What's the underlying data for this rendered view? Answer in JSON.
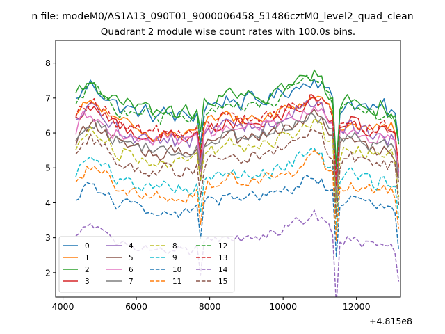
{
  "figure": {
    "suptitle": "n file: modeM0/AS1A13_090T01_9000006458_51486cztM0_level2_quad_clean"
  },
  "chart_data": {
    "type": "line",
    "title": "Quadrant 2 module wise count rates with 100.0s bins.",
    "xlabel": "",
    "ylabel": "",
    "x_offset_label": "+4.815e8",
    "xlim": [
      3800,
      13200
    ],
    "ylim": [
      1.3,
      8.65
    ],
    "x_ticks": [
      4000,
      6000,
      8000,
      10000,
      12000
    ],
    "x_tick_labels": [
      "4000",
      "6000",
      "8000",
      "10000",
      "12000"
    ],
    "y_ticks": [
      2,
      3,
      4,
      5,
      6,
      7,
      8
    ],
    "y_tick_labels": [
      "2",
      "3",
      "4",
      "5",
      "6",
      "7",
      "8"
    ],
    "grid": false,
    "legend": {
      "placement": "lower-left",
      "columns": 4
    },
    "x_start": 4350,
    "x_step": 100,
    "series": [
      {
        "name": "0",
        "color": "#1f77b4",
        "dash": "solid",
        "base": 6.9,
        "amp": 0.32
      },
      {
        "name": "1",
        "color": "#ff7f0e",
        "dash": "solid",
        "base": 6.4,
        "amp": 0.28
      },
      {
        "name": "2",
        "color": "#2ca02c",
        "dash": "solid",
        "base": 7.0,
        "amp": 0.32
      },
      {
        "name": "3",
        "color": "#d62728",
        "dash": "solid",
        "base": 6.3,
        "amp": 0.3
      },
      {
        "name": "4",
        "color": "#9467bd",
        "dash": "solid",
        "base": 6.2,
        "amp": 0.3
      },
      {
        "name": "5",
        "color": "#8c564b",
        "dash": "solid",
        "base": 5.8,
        "amp": 0.28
      },
      {
        "name": "6",
        "color": "#e377c2",
        "dash": "solid",
        "base": 6.1,
        "amp": 0.3
      },
      {
        "name": "7",
        "color": "#7f7f7f",
        "dash": "solid",
        "base": 5.9,
        "amp": 0.3
      },
      {
        "name": "8",
        "color": "#bcbd22",
        "dash": "dashed",
        "base": 5.6,
        "amp": 0.28
      },
      {
        "name": "9",
        "color": "#17becf",
        "dash": "dashed",
        "base": 4.8,
        "amp": 0.28
      },
      {
        "name": "10",
        "color": "#1f77b4",
        "dash": "dashed",
        "base": 4.1,
        "amp": 0.28
      },
      {
        "name": "11",
        "color": "#ff7f0e",
        "dash": "dashed",
        "base": 4.6,
        "amp": 0.28
      },
      {
        "name": "12",
        "color": "#2ca02c",
        "dash": "dashed",
        "base": 6.8,
        "amp": 0.3
      },
      {
        "name": "13",
        "color": "#d62728",
        "dash": "dashed",
        "base": 6.4,
        "amp": 0.3
      },
      {
        "name": "14",
        "color": "#9467bd",
        "dash": "dashed",
        "base": 3.0,
        "amp": 0.22
      },
      {
        "name": "15",
        "color": "#8c564b",
        "dash": "dashed",
        "base": 5.3,
        "amp": 0.28
      }
    ],
    "profile": [
      0.0,
      0.2,
      0.3,
      0.4,
      0.5,
      0.45,
      0.35,
      0.3,
      0.2,
      0.1,
      0.0,
      -0.1,
      -0.2,
      -0.15,
      -0.2,
      -0.25,
      -0.3,
      -0.3,
      -0.35,
      -0.3,
      -0.35,
      -0.4,
      -0.35,
      -0.4,
      -0.35,
      -0.4,
      -0.35,
      -0.45,
      -0.4,
      -0.45,
      -0.4,
      -0.45,
      -0.4,
      -0.35,
      -0.8,
      -0.2,
      -0.15,
      -0.1,
      -0.1,
      -0.05,
      0.0,
      0.05,
      0.1,
      0.05,
      0.0,
      -0.05,
      0.0,
      0.0,
      0.05,
      0.0,
      0.0,
      0.05,
      0.1,
      0.1,
      0.15,
      0.2,
      0.25,
      0.3,
      0.35,
      0.35,
      0.4,
      0.45,
      0.5,
      0.6,
      0.65,
      0.7,
      0.6,
      0.5,
      0.3,
      0.2,
      0.1,
      -0.3,
      -0.2,
      -0.1,
      -0.05,
      0.0,
      -0.05,
      -0.1,
      -0.15,
      -0.15,
      -0.2,
      -0.25,
      -0.3,
      -0.2,
      -0.15,
      -0.3,
      -0.25,
      -0.4,
      -0.4
    ],
    "dips": [
      {
        "index": 34,
        "depth": 0.35
      },
      {
        "index": 36,
        "depth": -0.1
      },
      {
        "index": 71,
        "depth": 1.5
      },
      {
        "index": 88,
        "depth": 0.9
      }
    ]
  }
}
